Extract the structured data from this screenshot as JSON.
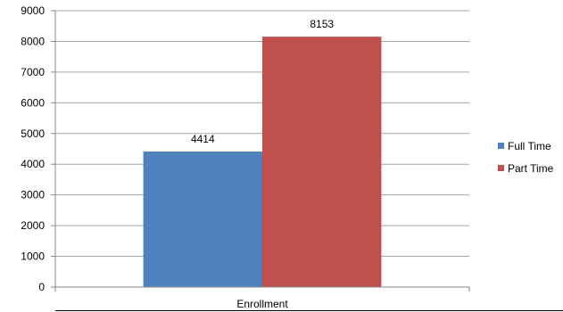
{
  "chart_data": {
    "type": "bar",
    "categories": [
      "Enrollment"
    ],
    "series": [
      {
        "name": "Full Time",
        "values": [
          4414
        ],
        "color": "#4f81bd"
      },
      {
        "name": "Part Time",
        "values": [
          8153
        ],
        "color": "#c0504d"
      }
    ],
    "title": "",
    "xlabel": "",
    "ylabel": "",
    "ylim": [
      0,
      9000
    ],
    "yticks": [
      0,
      1000,
      2000,
      3000,
      4000,
      5000,
      6000,
      7000,
      8000,
      9000
    ],
    "grid": true,
    "legend": "right",
    "data_labels": true
  },
  "colors": {
    "gridline": "#a6a6a6",
    "axis": "#868686"
  }
}
